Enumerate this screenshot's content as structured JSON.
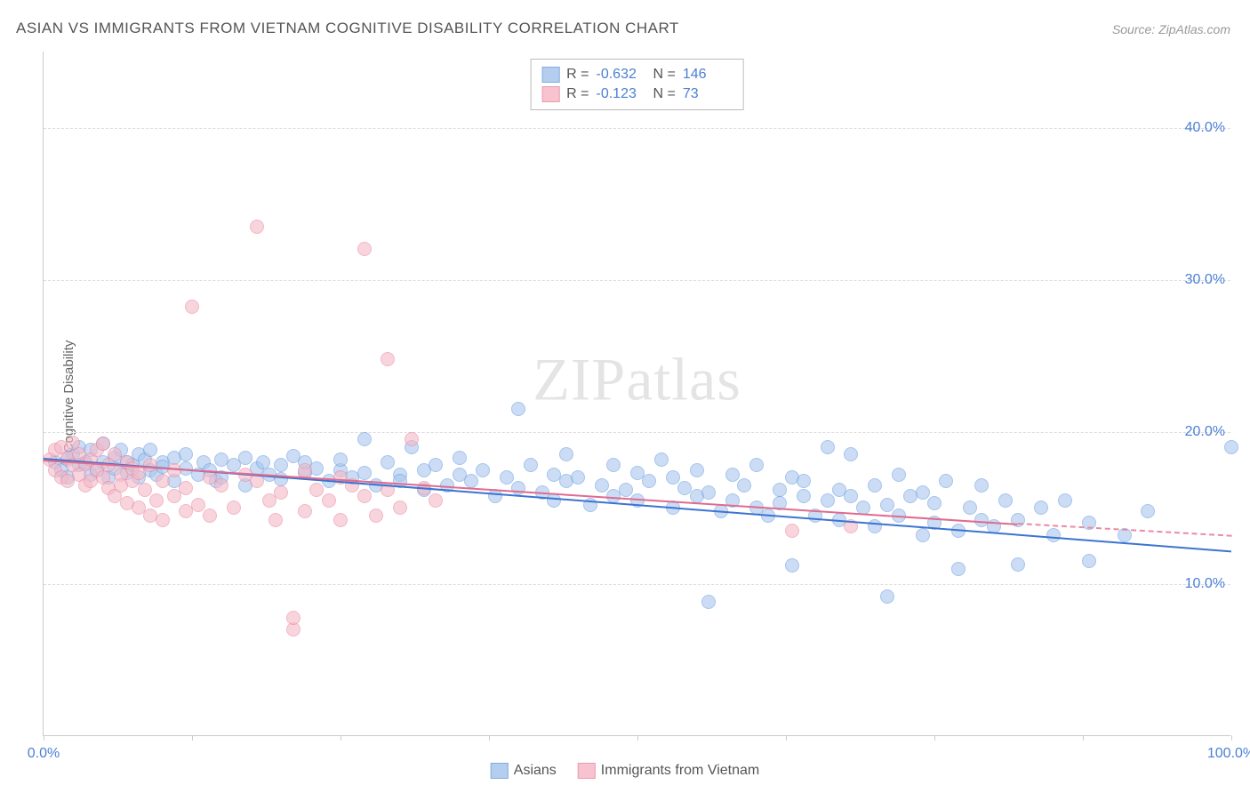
{
  "title": "ASIAN VS IMMIGRANTS FROM VIETNAM COGNITIVE DISABILITY CORRELATION CHART",
  "source": "Source: ZipAtlas.com",
  "ylabel": "Cognitive Disability",
  "watermark_zip": "ZIP",
  "watermark_rest": "atlas",
  "chart": {
    "type": "scatter",
    "xlim": [
      0,
      100
    ],
    "ylim": [
      0,
      45
    ],
    "xticks": [
      0,
      12.5,
      25,
      37.5,
      50,
      62.5,
      75,
      87.5,
      100
    ],
    "xtick_labels": {
      "0": "0.0%",
      "100": "100.0%"
    },
    "yticks": [
      10,
      20,
      30,
      40
    ],
    "ytick_labels": [
      "10.0%",
      "20.0%",
      "30.0%",
      "40.0%"
    ],
    "grid_color": "#dddddd",
    "axis_color": "#cccccc",
    "background_color": "#ffffff",
    "marker_radius": 8,
    "marker_stroke_width": 1,
    "series": [
      {
        "name": "Asians",
        "fill": "#a9c6ee",
        "fill_opacity": 0.6,
        "stroke": "#6b9fe0",
        "R": "-0.632",
        "N": "146",
        "trend": {
          "x1": 0,
          "y1": 18.3,
          "x2": 100,
          "y2": 12.2,
          "color": "#3b74d1",
          "width": 2
        },
        "points": [
          [
            1,
            18
          ],
          [
            1.5,
            17.5
          ],
          [
            2,
            18.2
          ],
          [
            2,
            17
          ],
          [
            2.5,
            18.5
          ],
          [
            3,
            17.8
          ],
          [
            3,
            19
          ],
          [
            3.5,
            18
          ],
          [
            4,
            17.2
          ],
          [
            4,
            18.8
          ],
          [
            4.5,
            17.5
          ],
          [
            5,
            18
          ],
          [
            5,
            19.2
          ],
          [
            5.5,
            17
          ],
          [
            6,
            18.3
          ],
          [
            6,
            17.6
          ],
          [
            6.5,
            18.8
          ],
          [
            7,
            17.3
          ],
          [
            7,
            18
          ],
          [
            7.5,
            17.8
          ],
          [
            8,
            18.5
          ],
          [
            8,
            17
          ],
          [
            8.5,
            18.2
          ],
          [
            9,
            17.5
          ],
          [
            9,
            18.8
          ],
          [
            9.5,
            17.2
          ],
          [
            10,
            18
          ],
          [
            10,
            17.7
          ],
          [
            11,
            18.3
          ],
          [
            11,
            16.8
          ],
          [
            12,
            17.6
          ],
          [
            12,
            18.5
          ],
          [
            13,
            17.2
          ],
          [
            13.5,
            18
          ],
          [
            14,
            17.5
          ],
          [
            14.5,
            16.8
          ],
          [
            15,
            18.2
          ],
          [
            15,
            17
          ],
          [
            16,
            17.8
          ],
          [
            17,
            18.3
          ],
          [
            17,
            16.5
          ],
          [
            18,
            17.6
          ],
          [
            18.5,
            18
          ],
          [
            19,
            17.2
          ],
          [
            20,
            17.8
          ],
          [
            20,
            16.9
          ],
          [
            21,
            18.4
          ],
          [
            22,
            17.3
          ],
          [
            22,
            18
          ],
          [
            23,
            17.6
          ],
          [
            24,
            16.8
          ],
          [
            25,
            17.5
          ],
          [
            25,
            18.2
          ],
          [
            26,
            17
          ],
          [
            27,
            19.5
          ],
          [
            27,
            17.3
          ],
          [
            28,
            16.5
          ],
          [
            29,
            18
          ],
          [
            30,
            17.2
          ],
          [
            30,
            16.8
          ],
          [
            31,
            19
          ],
          [
            32,
            17.5
          ],
          [
            32,
            16.2
          ],
          [
            33,
            17.8
          ],
          [
            34,
            16.5
          ],
          [
            35,
            17.2
          ],
          [
            35,
            18.3
          ],
          [
            36,
            16.8
          ],
          [
            37,
            17.5
          ],
          [
            38,
            15.8
          ],
          [
            39,
            17
          ],
          [
            40,
            21.5
          ],
          [
            40,
            16.3
          ],
          [
            41,
            17.8
          ],
          [
            42,
            16
          ],
          [
            43,
            17.2
          ],
          [
            43,
            15.5
          ],
          [
            44,
            18.5
          ],
          [
            44,
            16.8
          ],
          [
            45,
            17
          ],
          [
            46,
            15.2
          ],
          [
            47,
            16.5
          ],
          [
            48,
            17.8
          ],
          [
            48,
            15.8
          ],
          [
            49,
            16.2
          ],
          [
            50,
            17.3
          ],
          [
            50,
            15.5
          ],
          [
            51,
            16.8
          ],
          [
            52,
            18.2
          ],
          [
            53,
            15
          ],
          [
            53,
            17
          ],
          [
            54,
            16.3
          ],
          [
            55,
            15.8
          ],
          [
            55,
            17.5
          ],
          [
            56,
            16
          ],
          [
            56,
            8.8
          ],
          [
            57,
            14.8
          ],
          [
            58,
            17.2
          ],
          [
            58,
            15.5
          ],
          [
            59,
            16.5
          ],
          [
            60,
            15
          ],
          [
            60,
            17.8
          ],
          [
            61,
            14.5
          ],
          [
            62,
            16.2
          ],
          [
            62,
            15.3
          ],
          [
            63,
            17
          ],
          [
            63,
            11.2
          ],
          [
            64,
            15.8
          ],
          [
            64,
            16.8
          ],
          [
            65,
            14.5
          ],
          [
            66,
            15.5
          ],
          [
            66,
            19
          ],
          [
            67,
            16.2
          ],
          [
            67,
            14.2
          ],
          [
            68,
            15.8
          ],
          [
            68,
            18.5
          ],
          [
            69,
            15
          ],
          [
            70,
            16.5
          ],
          [
            70,
            13.8
          ],
          [
            71,
            9.2
          ],
          [
            71,
            15.2
          ],
          [
            72,
            14.5
          ],
          [
            72,
            17.2
          ],
          [
            73,
            15.8
          ],
          [
            74,
            13.2
          ],
          [
            74,
            16
          ],
          [
            75,
            15.3
          ],
          [
            75,
            14
          ],
          [
            76,
            16.8
          ],
          [
            77,
            13.5
          ],
          [
            77,
            11
          ],
          [
            78,
            15
          ],
          [
            79,
            14.2
          ],
          [
            79,
            16.5
          ],
          [
            80,
            13.8
          ],
          [
            81,
            15.5
          ],
          [
            82,
            14.2
          ],
          [
            82,
            11.3
          ],
          [
            84,
            15
          ],
          [
            85,
            13.2
          ],
          [
            86,
            15.5
          ],
          [
            88,
            14
          ],
          [
            88,
            11.5
          ],
          [
            91,
            13.2
          ],
          [
            93,
            14.8
          ],
          [
            100,
            19
          ]
        ]
      },
      {
        "name": "Immigrants from Vietnam",
        "fill": "#f5b9c7",
        "fill_opacity": 0.6,
        "stroke": "#e98aa3",
        "R": "-0.123",
        "N": "73",
        "trend": {
          "x1": 0,
          "y1": 18.2,
          "x2": 82,
          "y2": 14.0,
          "color": "#e06b8e",
          "width": 2
        },
        "trend_dash": {
          "x1": 82,
          "y1": 14.0,
          "x2": 100,
          "y2": 13.2,
          "color": "#e98aa3"
        },
        "points": [
          [
            0.5,
            18.2
          ],
          [
            1,
            17.5
          ],
          [
            1,
            18.8
          ],
          [
            1.5,
            17
          ],
          [
            1.5,
            19
          ],
          [
            2,
            18.3
          ],
          [
            2,
            16.8
          ],
          [
            2.5,
            17.8
          ],
          [
            2.5,
            19.3
          ],
          [
            3,
            17.2
          ],
          [
            3,
            18.5
          ],
          [
            3.5,
            16.5
          ],
          [
            3.5,
            17.9
          ],
          [
            4,
            18.2
          ],
          [
            4,
            16.8
          ],
          [
            4.5,
            17.5
          ],
          [
            4.5,
            18.8
          ],
          [
            5,
            17
          ],
          [
            5,
            19.2
          ],
          [
            5.5,
            16.3
          ],
          [
            5.5,
            17.8
          ],
          [
            6,
            18.5
          ],
          [
            6,
            15.8
          ],
          [
            6.5,
            17.2
          ],
          [
            6.5,
            16.5
          ],
          [
            7,
            18
          ],
          [
            7,
            15.3
          ],
          [
            7.5,
            17.6
          ],
          [
            7.5,
            16.8
          ],
          [
            8,
            15
          ],
          [
            8,
            17.3
          ],
          [
            8.5,
            16.2
          ],
          [
            9,
            14.5
          ],
          [
            9,
            17.8
          ],
          [
            9.5,
            15.5
          ],
          [
            10,
            16.8
          ],
          [
            10,
            14.2
          ],
          [
            11,
            17.5
          ],
          [
            11,
            15.8
          ],
          [
            12,
            16.3
          ],
          [
            12,
            14.8
          ],
          [
            12.5,
            28.2
          ],
          [
            13,
            15.2
          ],
          [
            14,
            17
          ],
          [
            14,
            14.5
          ],
          [
            15,
            16.5
          ],
          [
            16,
            15
          ],
          [
            17,
            17.2
          ],
          [
            18,
            33.5
          ],
          [
            18,
            16.8
          ],
          [
            19,
            15.5
          ],
          [
            19.5,
            14.2
          ],
          [
            20,
            16
          ],
          [
            21,
            7
          ],
          [
            21,
            7.8
          ],
          [
            22,
            17.5
          ],
          [
            22,
            14.8
          ],
          [
            23,
            16.2
          ],
          [
            24,
            15.5
          ],
          [
            25,
            17
          ],
          [
            25,
            14.2
          ],
          [
            26,
            16.5
          ],
          [
            27,
            32
          ],
          [
            27,
            15.8
          ],
          [
            28,
            14.5
          ],
          [
            29,
            16.2
          ],
          [
            29,
            24.8
          ],
          [
            30,
            15
          ],
          [
            31,
            19.5
          ],
          [
            32,
            16.3
          ],
          [
            33,
            15.5
          ],
          [
            63,
            13.5
          ],
          [
            68,
            13.8
          ]
        ]
      }
    ]
  },
  "legend": {
    "series1_label": "Asians",
    "series2_label": "Immigrants from Vietnam"
  },
  "stats_labels": {
    "R": "R =",
    "N": "N ="
  }
}
